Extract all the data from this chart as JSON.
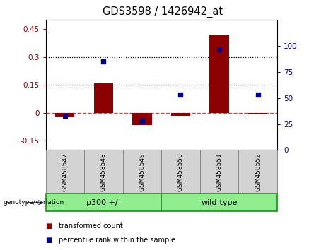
{
  "title": "GDS3598 / 1426942_at",
  "samples": [
    "GSM458547",
    "GSM458548",
    "GSM458549",
    "GSM458550",
    "GSM458551",
    "GSM458552"
  ],
  "transformed_count": [
    -0.02,
    0.16,
    -0.065,
    -0.015,
    0.42,
    -0.01
  ],
  "percentile_rank": [
    33,
    85,
    28,
    53,
    97,
    53
  ],
  "bar_color": "#8B0000",
  "scatter_color": "#00008B",
  "ylim_left": [
    -0.2,
    0.5
  ],
  "ylim_right": [
    0,
    125
  ],
  "yticks_left": [
    -0.15,
    0.0,
    0.15,
    0.3,
    0.45
  ],
  "yticks_right": [
    0,
    25,
    50,
    75,
    100
  ],
  "hlines": [
    0.15,
    0.3
  ],
  "hline_zero_color": "#cc4444",
  "plot_bg": "#ffffff",
  "label_box_color": "#d3d3d3",
  "label_box_edge": "#888888",
  "genotype_bg": "#90EE90",
  "genotype_edge": "#228B22",
  "group1_label": "p300 +/-",
  "group2_label": "wild-type",
  "genotype_label": "genotype/variation",
  "legend_items": [
    "transformed count",
    "percentile rank within the sample"
  ],
  "bar_width": 0.5
}
